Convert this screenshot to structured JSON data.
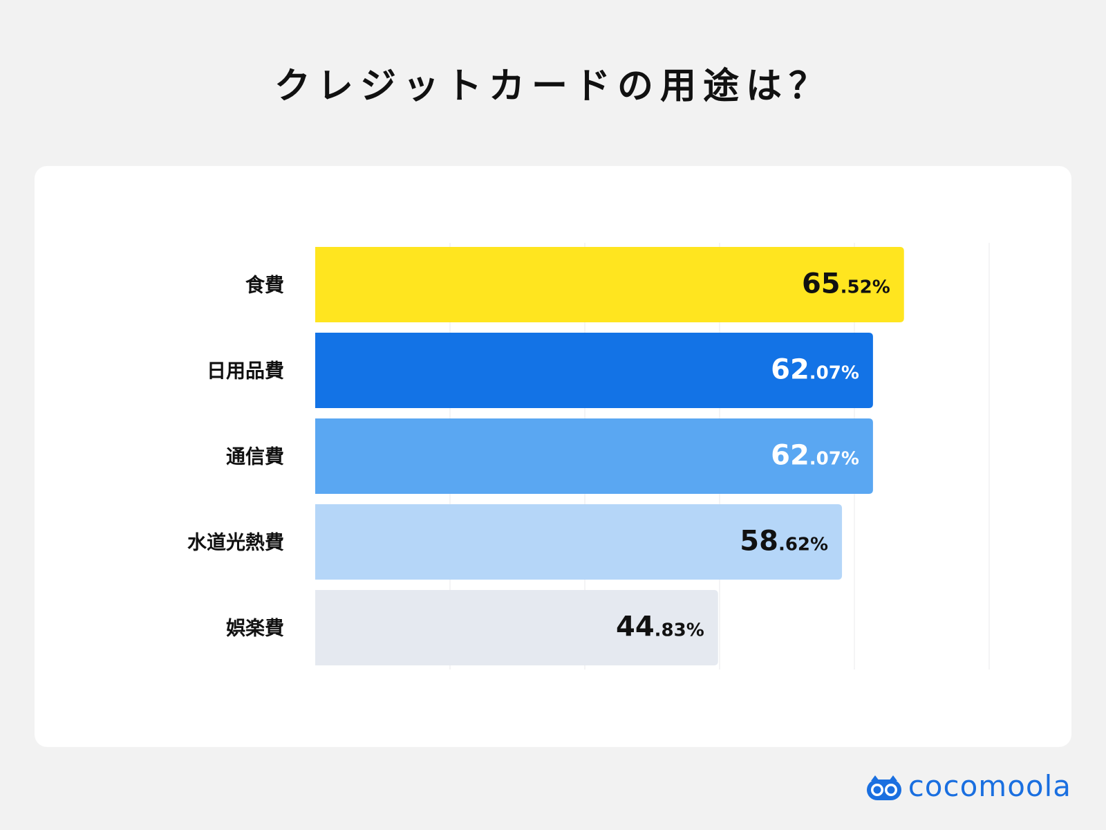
{
  "title": "クレジットカードの用途は？",
  "brand": {
    "name": "cocomoola",
    "color": "#1a6fe0",
    "icon": "cocomoola-logo-icon"
  },
  "chart_data": {
    "type": "bar",
    "orientation": "horizontal",
    "title": "クレジットカードの用途は？",
    "categories": [
      "食費",
      "日用品費",
      "通信費",
      "水道光熱費",
      "娯楽費"
    ],
    "values": [
      65.52,
      62.07,
      62.07,
      58.62,
      44.83
    ],
    "unit": "%",
    "value_labels": [
      {
        "int": "65",
        "dec": ".52%"
      },
      {
        "int": "62",
        "dec": ".07%"
      },
      {
        "int": "62",
        "dec": ".07%"
      },
      {
        "int": "58",
        "dec": ".62%"
      },
      {
        "int": "44",
        "dec": ".83%"
      }
    ],
    "colors": [
      "#ffe51f",
      "#1373e6",
      "#5aa7f2",
      "#b5d6f8",
      "#e5e9f0"
    ],
    "label_colors": [
      "#111111",
      "#ffffff",
      "#ffffff",
      "#111111",
      "#111111"
    ],
    "xlim": [
      0,
      75
    ],
    "grid": true
  }
}
